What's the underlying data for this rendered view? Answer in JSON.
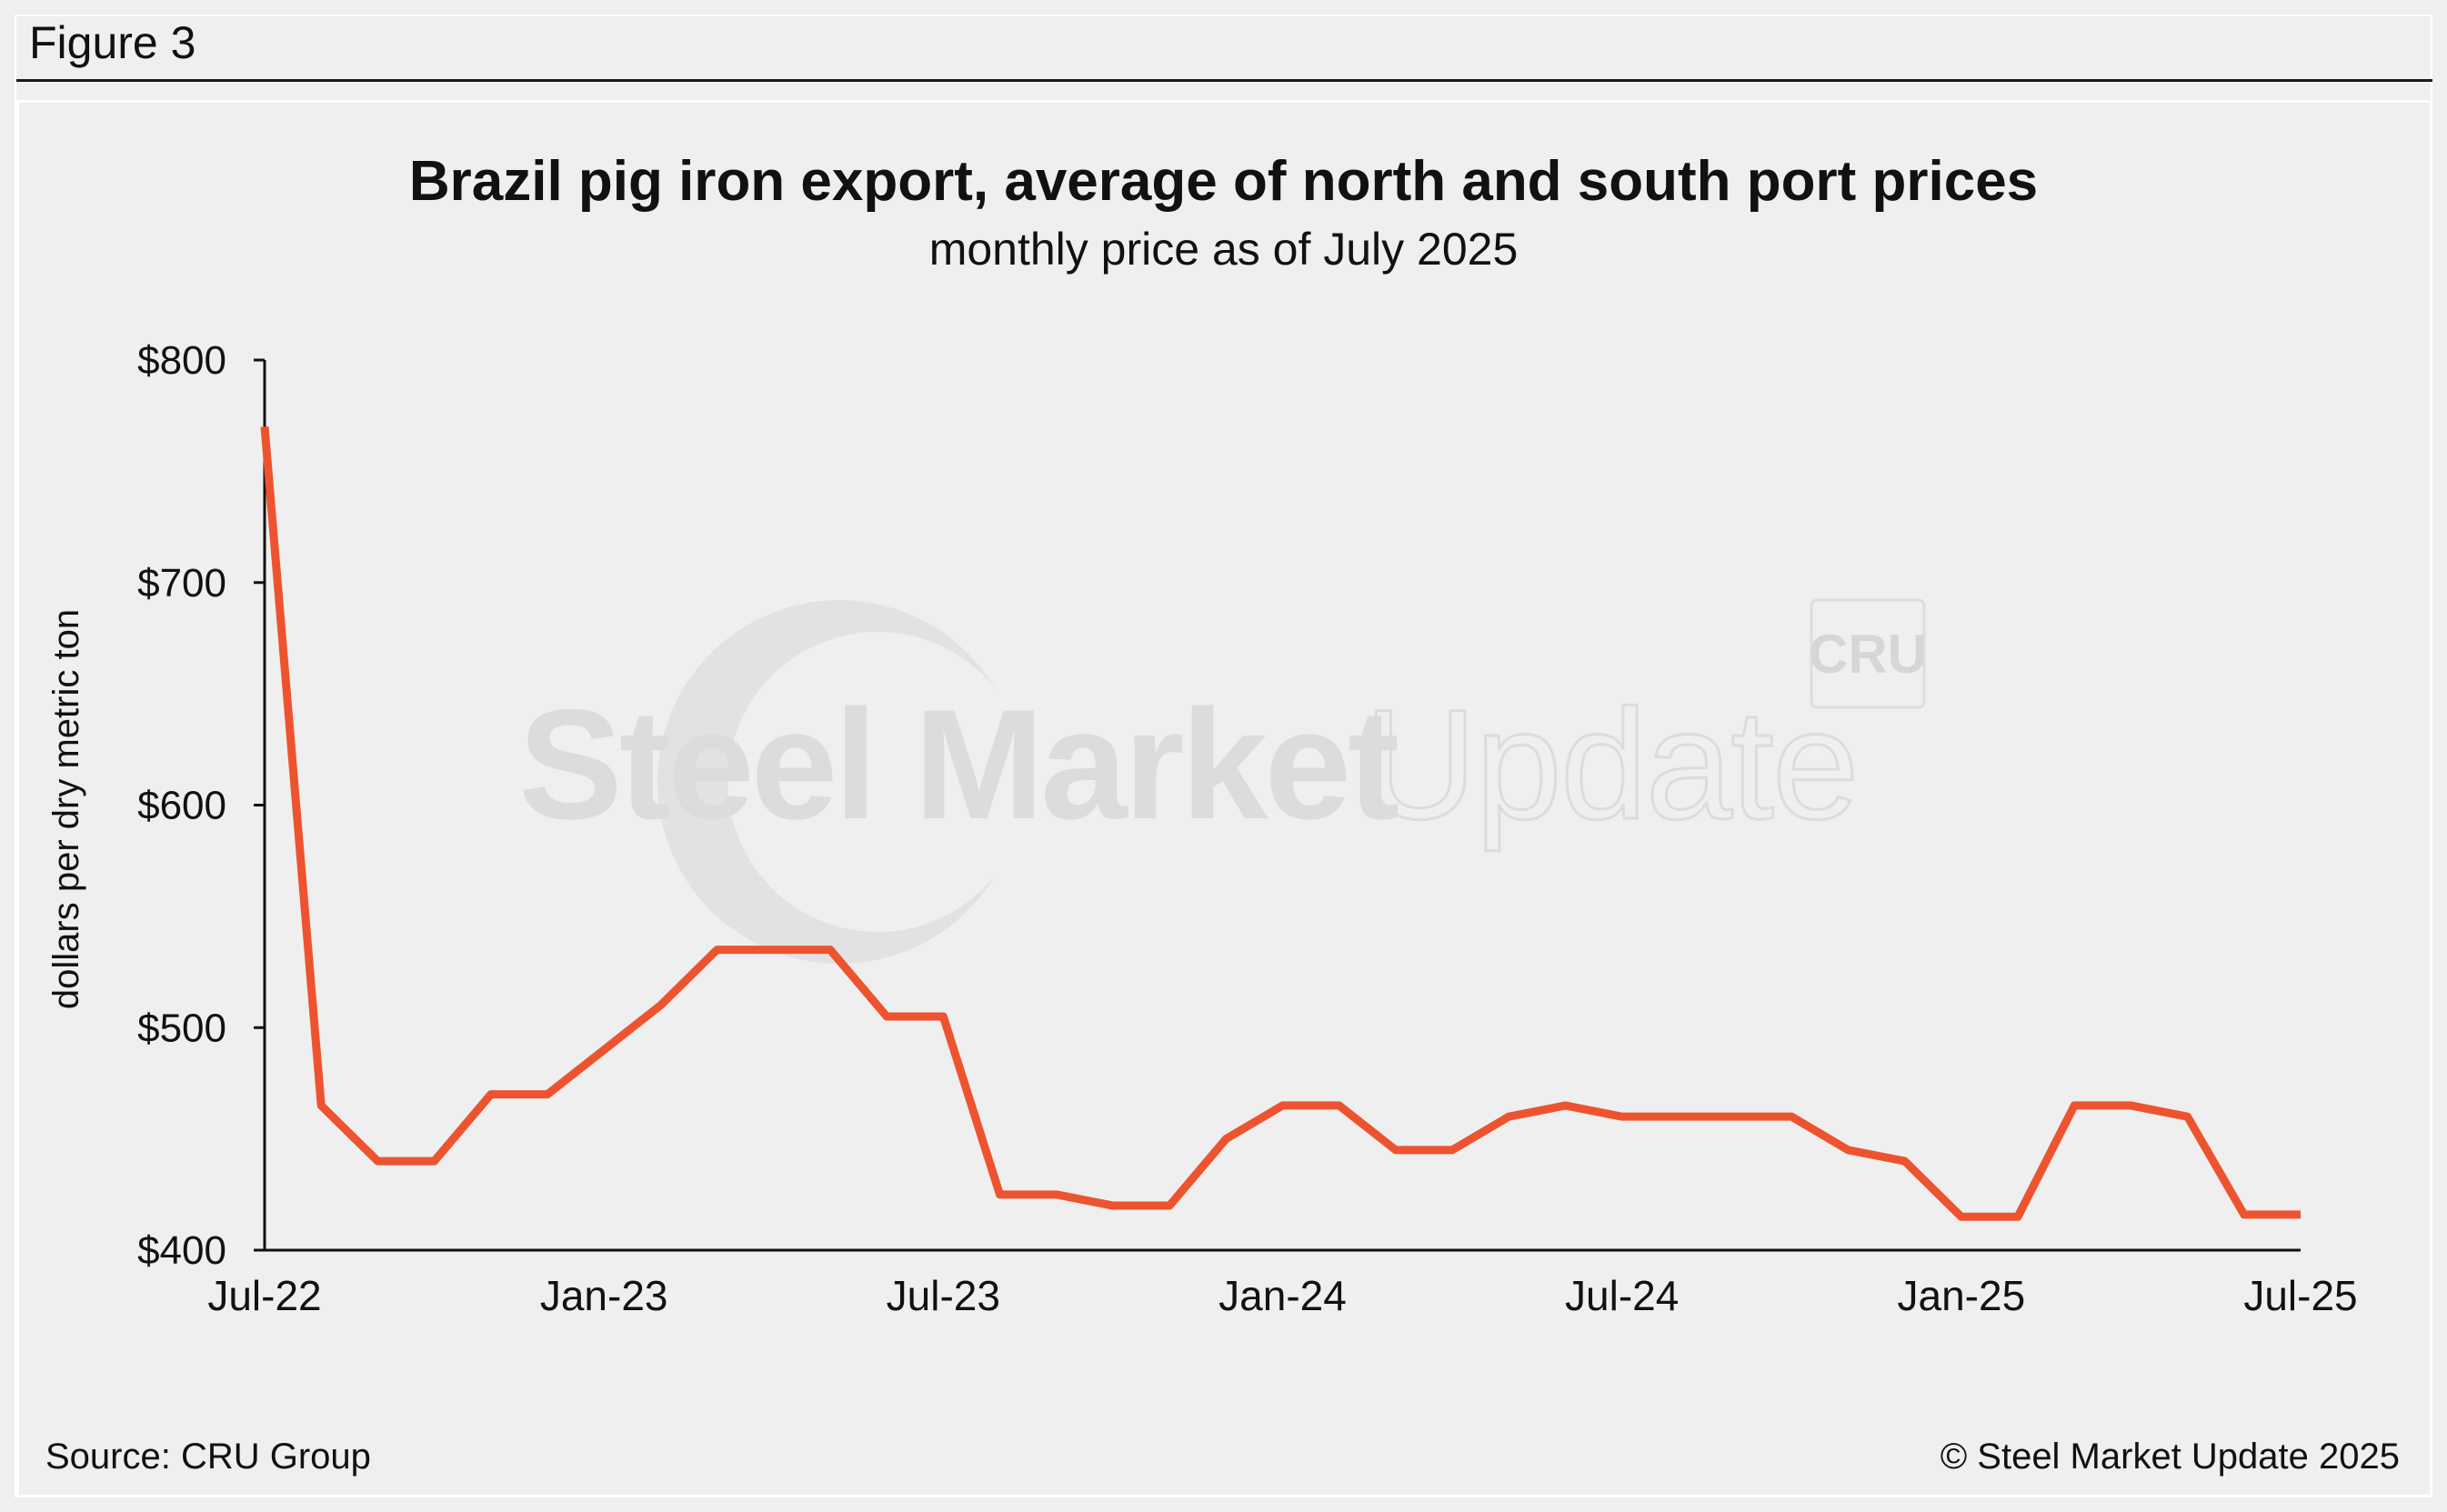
{
  "figure": {
    "label": "Figure 3",
    "source": "Source: CRU Group",
    "copyright": "© Steel Market Update 2025"
  },
  "watermark": {
    "brand_bold": "Steel Market",
    "brand_light": "Update",
    "badge": "CRU"
  },
  "colors": {
    "line": "#ee5330",
    "axis": "#111111",
    "background": "#efefef",
    "watermark": "#dcdcdc"
  },
  "chart_data": {
    "type": "line",
    "title": "Brazil pig iron export, average of north and south port prices",
    "subtitle": "monthly price as of July 2025",
    "xlabel": "",
    "ylabel": "dollars per dry metric ton",
    "ylim": [
      400,
      800
    ],
    "yticks": [
      400,
      500,
      600,
      700,
      800
    ],
    "ytick_labels": [
      "$400",
      "$500",
      "$600",
      "$700",
      "$800"
    ],
    "xtick_labels": [
      "Jul-22",
      "Jan-23",
      "Jul-23",
      "Jan-24",
      "Jul-24",
      "Jan-25",
      "Jul-25"
    ],
    "xtick_index": [
      0,
      6,
      12,
      18,
      24,
      30,
      36
    ],
    "grid": false,
    "legend": "none",
    "series": [
      {
        "name": "Brazil pig iron export price",
        "x": [
          "Jul-22",
          "Aug-22",
          "Sep-22",
          "Oct-22",
          "Nov-22",
          "Dec-22",
          "Jan-23",
          "Feb-23",
          "Mar-23",
          "Apr-23",
          "May-23",
          "Jun-23",
          "Jul-23",
          "Aug-23",
          "Sep-23",
          "Oct-23",
          "Nov-23",
          "Dec-23",
          "Jan-24",
          "Feb-24",
          "Mar-24",
          "Apr-24",
          "May-24",
          "Jun-24",
          "Jul-24",
          "Aug-24",
          "Sep-24",
          "Oct-24",
          "Nov-24",
          "Dec-24",
          "Jan-25",
          "Feb-25",
          "Mar-25",
          "Apr-25",
          "May-25",
          "Jun-25",
          "Jul-25"
        ],
        "values": [
          770,
          465,
          440,
          440,
          470,
          470,
          490,
          510,
          535,
          535,
          535,
          505,
          505,
          425,
          425,
          420,
          420,
          450,
          465,
          465,
          445,
          445,
          460,
          465,
          460,
          460,
          460,
          460,
          445,
          440,
          415,
          415,
          465,
          465,
          460,
          416,
          416
        ]
      }
    ]
  }
}
